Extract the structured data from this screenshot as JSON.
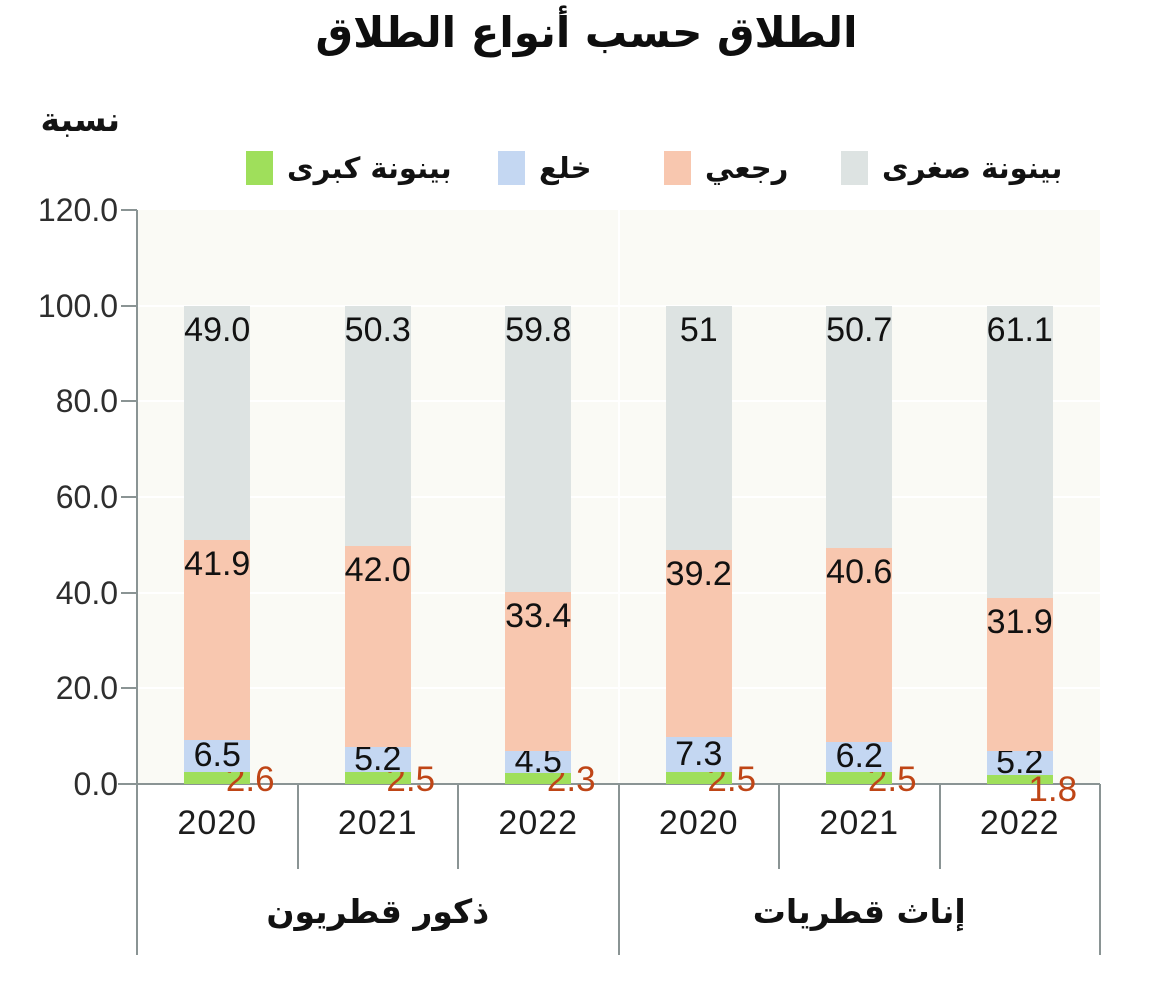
{
  "chart_data": {
    "type": "bar",
    "stacked": true,
    "title": "الطلاق حسب أنواع الطلاق",
    "ylabel": "نسبة",
    "ylim": [
      0,
      120
    ],
    "ytick_step": 20,
    "ytick_labels": [
      "0.0",
      "20.0",
      "40.0",
      "60.0",
      "80.0",
      "100.0",
      "120.0"
    ],
    "grid": "white horizontal lines on light plot background",
    "legend_position": "top",
    "categories": [
      "2020",
      "2021",
      "2022",
      "2020",
      "2021",
      "2022"
    ],
    "groups": [
      {
        "label": "ذكور قطريون",
        "categories": [
          "2020",
          "2021",
          "2022"
        ]
      },
      {
        "label": "إناث قطريات",
        "categories": [
          "2020",
          "2021",
          "2022"
        ]
      }
    ],
    "series": [
      {
        "name": "بينونة كبرى",
        "color": "#9fdf5b",
        "label_color": "#bf4516",
        "label_position": "outside-right-at-baseline",
        "values": [
          2.6,
          2.5,
          2.3,
          2.5,
          2.5,
          1.8
        ],
        "labels": [
          "2.6",
          "2.5",
          "2.3",
          "2.5",
          "2.5",
          "1.8"
        ]
      },
      {
        "name": "خلع",
        "color": "#c4d7f2",
        "label_color": "#111111",
        "label_position": "inside-center",
        "values": [
          6.5,
          5.2,
          4.5,
          7.3,
          6.2,
          5.2
        ],
        "labels": [
          "6.5",
          "5.2",
          "4.5",
          "7.3",
          "6.2",
          "5.2"
        ]
      },
      {
        "name": "رجعي",
        "color": "#f8c7af",
        "label_color": "#111111",
        "label_position": "inside-top",
        "values": [
          41.9,
          42.0,
          33.4,
          39.2,
          40.6,
          31.9
        ],
        "labels": [
          "41.9",
          "42.0",
          "33.4",
          "39.2",
          "40.6",
          "31.9"
        ]
      },
      {
        "name": "بينونة صغرى",
        "color": "#dde3e2",
        "label_color": "#111111",
        "label_position": "inside-top",
        "values": [
          49.0,
          50.3,
          59.8,
          51,
          50.7,
          61.1
        ],
        "labels": [
          "49.0",
          "50.3",
          "59.8",
          "51",
          "50.7",
          "61.1"
        ]
      }
    ],
    "colors": {
      "plot_background": "#fafaf5",
      "gridline": "#ffffff",
      "axis_line": "#8a9494",
      "tick_text": "#2e2e2e",
      "value_text": "#111111",
      "green_value_text": "#bf4516"
    }
  }
}
